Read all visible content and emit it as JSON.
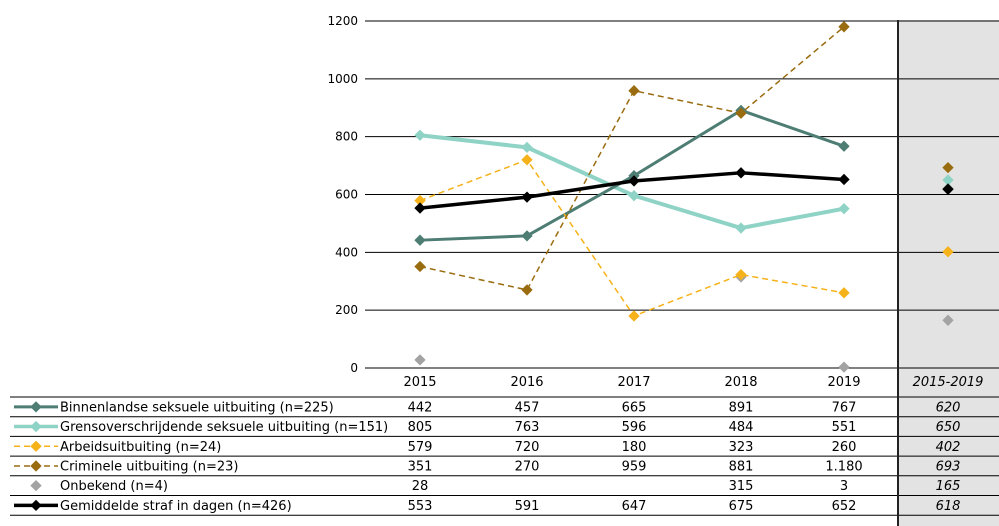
{
  "chart_data": {
    "type": "line",
    "categories": [
      "2015",
      "2016",
      "2017",
      "2018",
      "2019"
    ],
    "summary_category": "2015-2019",
    "ylim": [
      0,
      1200
    ],
    "yticks": [
      0,
      200,
      400,
      600,
      800,
      1000,
      1200
    ],
    "grid": true,
    "series": [
      {
        "name": "Binnenlandse seksuele uitbuiting (n=225)",
        "values": [
          442,
          457,
          665,
          891,
          767
        ],
        "labels": [
          "442",
          "457",
          "665",
          "891",
          "767"
        ],
        "summary": 620,
        "summary_label": "620",
        "color": "#4e7d74",
        "style": "solid-thick"
      },
      {
        "name": "Grensoverschrijdende seksuele uitbuiting (n=151)",
        "values": [
          805,
          763,
          596,
          484,
          551
        ],
        "labels": [
          "805",
          "763",
          "596",
          "484",
          "551"
        ],
        "summary": 650,
        "summary_label": "650",
        "color": "#8fd3c6",
        "style": "solid-thicker"
      },
      {
        "name": "Arbeidsuitbuiting (n=24)",
        "values": [
          579,
          720,
          180,
          323,
          260
        ],
        "labels": [
          "579",
          "720",
          "180",
          "323",
          "260"
        ],
        "summary": 402,
        "summary_label": "402",
        "color": "#f5b21b",
        "style": "dashed"
      },
      {
        "name": "Criminele uitbuiting  (n=23)",
        "values": [
          351,
          270,
          959,
          881,
          1180
        ],
        "labels": [
          "351",
          "270",
          "959",
          "881",
          "1.180"
        ],
        "summary": 693,
        "summary_label": "693",
        "color": "#9a6c10",
        "style": "dashed"
      },
      {
        "name": "Onbekend (n=4)",
        "values": [
          28,
          null,
          null,
          315,
          3
        ],
        "labels": [
          "28",
          "",
          "",
          "315",
          "3"
        ],
        "summary": 165,
        "summary_label": "165",
        "color": "#a3a3a3",
        "style": "markers"
      },
      {
        "name": "Gemiddelde straf in dagen (n=426)",
        "values": [
          553,
          591,
          647,
          675,
          652
        ],
        "labels": [
          "553",
          "591",
          "647",
          "675",
          "652"
        ],
        "summary": 618,
        "summary_label": "618",
        "color": "#000000",
        "style": "solid-bold"
      }
    ]
  }
}
